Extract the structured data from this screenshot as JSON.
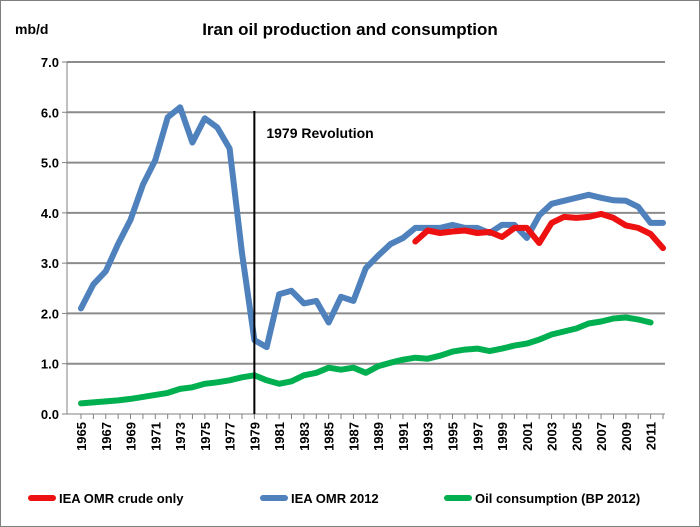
{
  "chart_data": {
    "type": "line",
    "title": "Iran oil production and consumption",
    "ylabel": "mb/d",
    "xlabel": "",
    "ylim": [
      0,
      7
    ],
    "yticks": [
      "0.0",
      "1.0",
      "2.0",
      "3.0",
      "4.0",
      "5.0",
      "6.0",
      "7.0"
    ],
    "xlim": [
      1965,
      2012
    ],
    "xticks": [
      "1965",
      "1967",
      "1969",
      "1971",
      "1973",
      "1975",
      "1977",
      "1979",
      "1981",
      "1983",
      "1985",
      "1987",
      "1989",
      "1991",
      "1993",
      "1995",
      "1997",
      "1999",
      "2001",
      "2003",
      "2005",
      "2007",
      "2009",
      "2011"
    ],
    "grid": "horizontal",
    "legend_position": "bottom",
    "annotation": {
      "label": "1979 Revolution",
      "x": 1979
    },
    "series": [
      {
        "name": "IEA OMR crude only",
        "color": "#ee1111",
        "x": [
          1992,
          1993,
          1994,
          1995,
          1996,
          1997,
          1998,
          1999,
          2000,
          2001,
          2002,
          2003,
          2004,
          2005,
          2006,
          2007,
          2008,
          2009,
          2010,
          2011,
          2012
        ],
        "values": [
          3.43,
          3.65,
          3.6,
          3.63,
          3.65,
          3.6,
          3.62,
          3.52,
          3.7,
          3.7,
          3.4,
          3.8,
          3.92,
          3.9,
          3.92,
          3.98,
          3.9,
          3.75,
          3.7,
          3.58,
          3.3
        ]
      },
      {
        "name": "IEA OMR 2012",
        "color": "#4f81bd",
        "x": [
          1965,
          1966,
          1967,
          1968,
          1969,
          1970,
          1971,
          1972,
          1973,
          1974,
          1975,
          1976,
          1977,
          1978,
          1979,
          1980,
          1981,
          1982,
          1983,
          1984,
          1985,
          1986,
          1987,
          1988,
          1989,
          1990,
          1991,
          1992,
          1993,
          1994,
          1995,
          1996,
          1997,
          1998,
          1999,
          2000,
          2001,
          2002,
          2003,
          2004,
          2005,
          2006,
          2007,
          2008,
          2009,
          2010,
          2011,
          2012
        ],
        "values": [
          2.1,
          2.58,
          2.84,
          3.38,
          3.86,
          4.56,
          5.05,
          5.9,
          6.1,
          5.4,
          5.88,
          5.7,
          5.28,
          3.2,
          1.47,
          1.33,
          2.38,
          2.45,
          2.2,
          2.25,
          1.82,
          2.33,
          2.25,
          2.9,
          3.15,
          3.38,
          3.5,
          3.7,
          3.7,
          3.7,
          3.76,
          3.7,
          3.7,
          3.6,
          3.76,
          3.76,
          3.5,
          3.95,
          4.18,
          4.24,
          4.3,
          4.36,
          4.3,
          4.25,
          4.24,
          4.12,
          3.8,
          3.8
        ]
      },
      {
        "name": "Oil consumption (BP 2012)",
        "color": "#00b050",
        "x": [
          1965,
          1966,
          1967,
          1968,
          1969,
          1970,
          1971,
          1972,
          1973,
          1974,
          1975,
          1976,
          1977,
          1978,
          1979,
          1980,
          1981,
          1982,
          1983,
          1984,
          1985,
          1986,
          1987,
          1988,
          1989,
          1990,
          1991,
          1992,
          1993,
          1994,
          1995,
          1996,
          1997,
          1998,
          1999,
          2000,
          2001,
          2002,
          2003,
          2004,
          2005,
          2006,
          2007,
          2008,
          2009,
          2010,
          2011
        ],
        "values": [
          0.21,
          0.23,
          0.25,
          0.27,
          0.3,
          0.34,
          0.38,
          0.42,
          0.5,
          0.53,
          0.6,
          0.63,
          0.67,
          0.73,
          0.77,
          0.67,
          0.6,
          0.65,
          0.77,
          0.82,
          0.92,
          0.88,
          0.92,
          0.82,
          0.95,
          1.02,
          1.08,
          1.12,
          1.1,
          1.16,
          1.24,
          1.28,
          1.3,
          1.25,
          1.3,
          1.36,
          1.4,
          1.48,
          1.58,
          1.64,
          1.7,
          1.8,
          1.84,
          1.9,
          1.92,
          1.88,
          1.82
        ]
      }
    ]
  }
}
